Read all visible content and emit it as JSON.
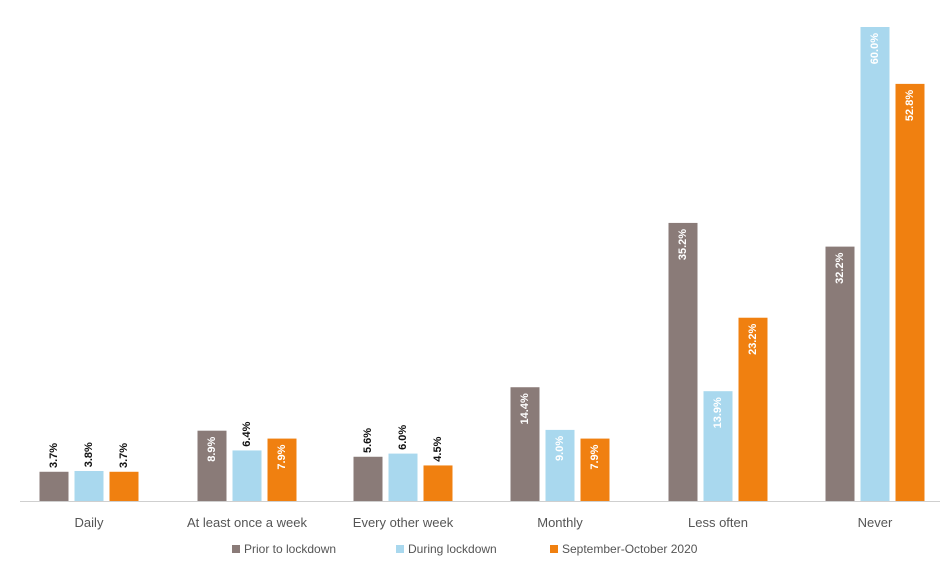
{
  "chart_data": {
    "type": "bar",
    "title": "",
    "xlabel": "",
    "ylabel": "",
    "ylim": [
      0,
      60
    ],
    "grid": false,
    "legend_position": "bottom",
    "categories": [
      "Daily",
      "At least once a week",
      "Every other week",
      "Monthly",
      "Less often",
      "Never"
    ],
    "series": [
      {
        "name": "Prior to lockdown",
        "color": "#8a7b78",
        "values": [
          3.7,
          8.9,
          5.6,
          14.4,
          35.2,
          32.2
        ],
        "labels": [
          "3.7%",
          "8.9%",
          "5.6%",
          "14.4%",
          "35.2%",
          "32.2%"
        ]
      },
      {
        "name": "During lockdown",
        "color": "#a9d8ee",
        "values": [
          3.8,
          6.4,
          6.0,
          9.0,
          13.9,
          60.0
        ],
        "labels": [
          "3.8%",
          "6.4%",
          "6.0%",
          "9.0%",
          "13.9%",
          "60.0%"
        ]
      },
      {
        "name": "September-October 2020",
        "color": "#f08010",
        "values": [
          3.7,
          7.9,
          4.5,
          7.9,
          23.2,
          52.8
        ],
        "labels": [
          "3.7%",
          "7.9%",
          "4.5%",
          "7.9%",
          "23.2%",
          "52.8%"
        ]
      }
    ]
  }
}
